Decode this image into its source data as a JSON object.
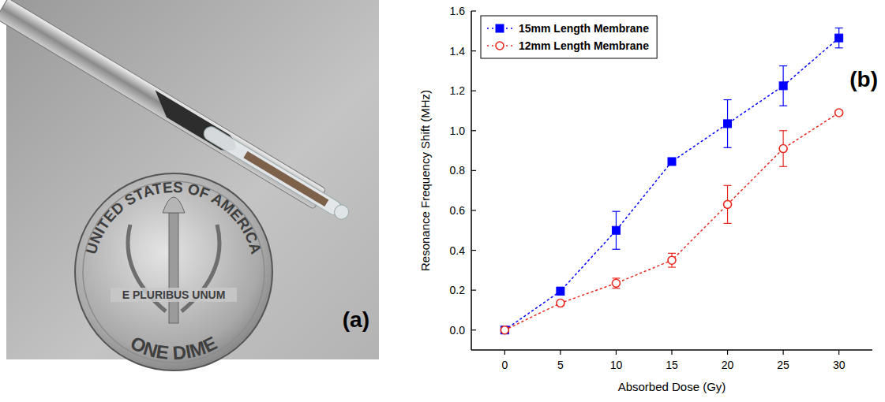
{
  "photo": {
    "label": "(a)",
    "coin_texts": [
      "UNITED STATES OF AMERICA",
      "E PLURIBUS UNUM",
      "ONE DIME"
    ]
  },
  "chart_data": {
    "type": "line",
    "panel_label": "(b)",
    "x_label": "Absorbed Dose (Gy)",
    "y_label": "Resonance Frequency Shift (MHz)",
    "x": [
      0,
      5,
      10,
      15,
      20,
      25,
      30
    ],
    "series": [
      {
        "name": "15mm Length Membrane",
        "color": "#0000ff",
        "marker": "square",
        "line_style": "dotted",
        "values": [
          0,
          0.195,
          0.5,
          0.845,
          1.035,
          1.225,
          1.465
        ],
        "errors": [
          0,
          0.02,
          0.095,
          0.01,
          0.12,
          0.1,
          0.05
        ]
      },
      {
        "name": "12mm Length Membrane",
        "color": "#e8281e",
        "marker": "circle_open",
        "line_style": "dotted",
        "values": [
          0,
          0.135,
          0.235,
          0.35,
          0.63,
          0.91,
          1.09
        ],
        "errors": [
          0,
          0.01,
          0.025,
          0.035,
          0.095,
          0.09,
          0.01
        ]
      }
    ],
    "xlim": [
      -3,
      33
    ],
    "ylim": [
      -0.1,
      1.6
    ],
    "xticks": [
      0,
      5,
      10,
      15,
      20,
      25,
      30
    ],
    "yticks": [
      {
        "value": 0,
        "label": "0.0"
      },
      {
        "value": 0.2,
        "label": "0.2"
      },
      {
        "value": 0.4,
        "label": "0.4"
      },
      {
        "value": 0.6,
        "label": "0.6"
      },
      {
        "value": 0.8,
        "label": "0.8"
      },
      {
        "value": 1.0,
        "label": "1.0"
      },
      {
        "value": 1.2,
        "label": "1.2"
      },
      {
        "value": 1.4,
        "label": "1.4"
      },
      {
        "value": 1.6,
        "label": "1.6"
      }
    ],
    "grid": false,
    "legend": "upper left"
  }
}
